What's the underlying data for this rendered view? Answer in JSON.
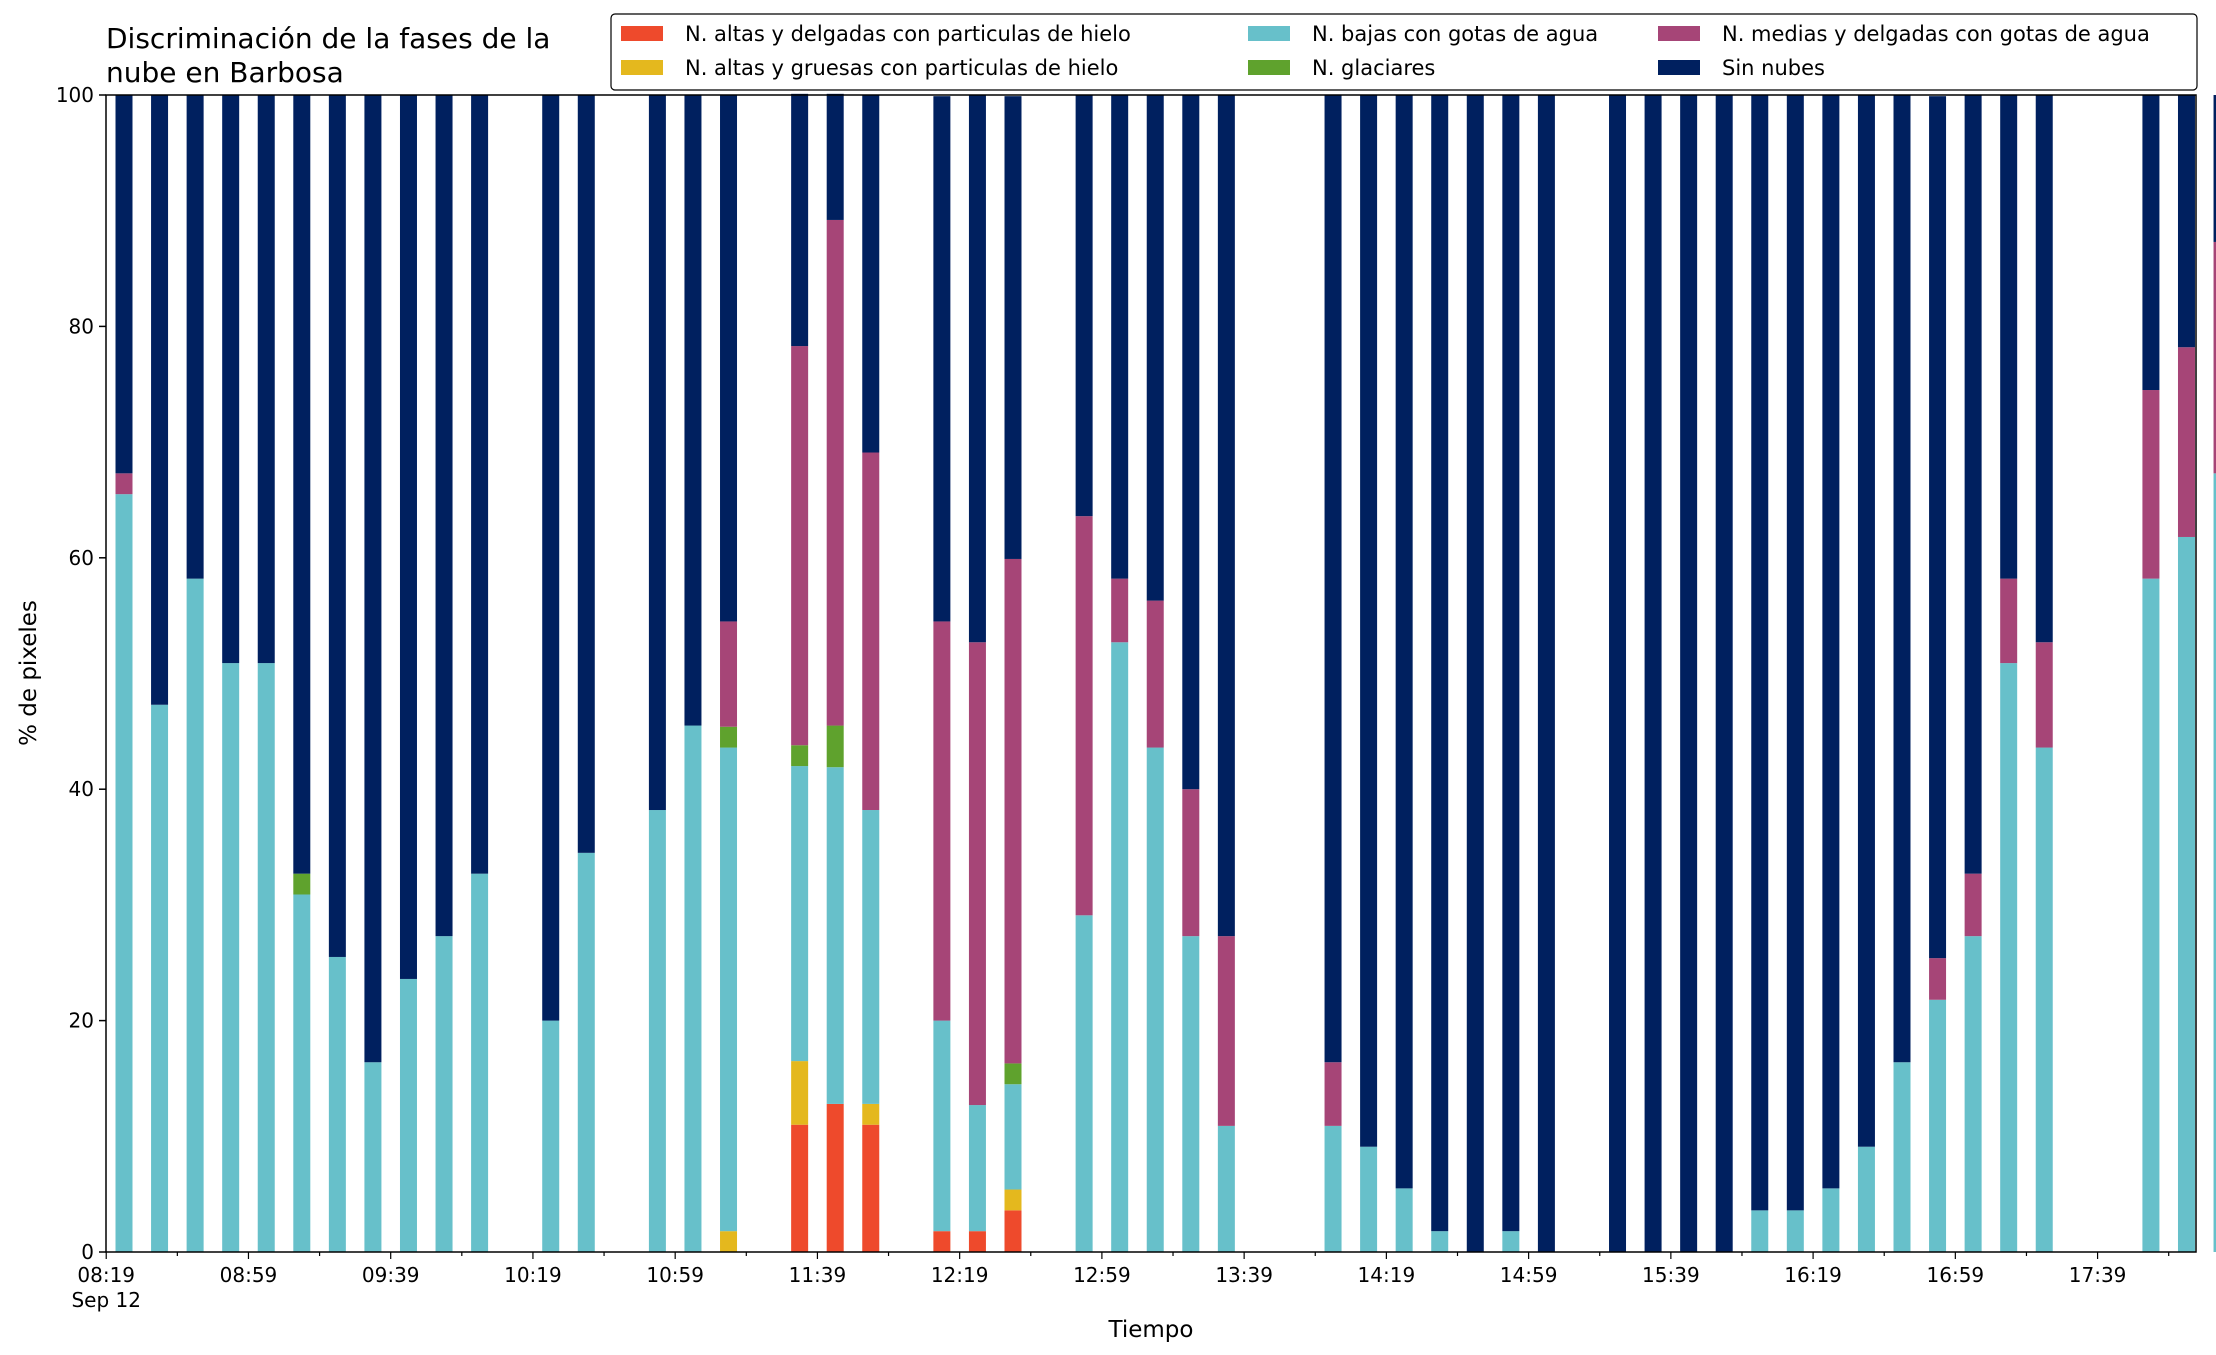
{
  "chart_data": {
    "type": "bar",
    "stacked": true,
    "title": "Discriminación de la fases de la\nnube en Barbosa",
    "xlabel": "Tiempo",
    "ylabel": "% de pixeles",
    "ylim": [
      0,
      100
    ],
    "yticks": [
      "0",
      "20",
      "40",
      "60",
      "80",
      "100"
    ],
    "xtick_labels": [
      "08:19",
      "08:59",
      "09:39",
      "10:19",
      "10:59",
      "11:39",
      "12:19",
      "12:59",
      "13:39",
      "14:19",
      "14:59",
      "15:39",
      "16:19",
      "16:59",
      "17:39"
    ],
    "xtick_sublabel": "Sep 12",
    "legend_position": "top-right",
    "colors": {
      "altas_delgadas": "#ee4a2c",
      "altas_gruesas": "#e4b81e",
      "bajas": "#67c0ca",
      "glaciares": "#5fa22d",
      "medias": "#a64577",
      "sin_nubes": "#00205f"
    },
    "series": [
      {
        "key": "altas_delgadas",
        "name": "N. altas y delgadas con particulas de hielo",
        "values": [
          0,
          0,
          0,
          0,
          0,
          0,
          0,
          0,
          0,
          0,
          0,
          null,
          0,
          0,
          null,
          0,
          0,
          0,
          0,
          11,
          12.8,
          11,
          null,
          1.8,
          1.8,
          3.6,
          null,
          0,
          0,
          0,
          0,
          0,
          null,
          null,
          0,
          0,
          0,
          0,
          0,
          0,
          0,
          null,
          0,
          0,
          0,
          0,
          0,
          0,
          0,
          0,
          0,
          0,
          0,
          0,
          0,
          0,
          null,
          0,
          0,
          0
        ]
      },
      {
        "key": "altas_gruesas",
        "name": "N. altas y gruesas con particulas de hielo",
        "values": [
          0,
          0,
          0,
          0,
          0,
          0,
          0,
          0,
          0,
          0,
          0,
          null,
          0,
          0,
          null,
          0,
          0,
          1.8,
          0,
          5.5,
          0,
          1.8,
          null,
          0,
          0,
          1.8,
          null,
          0,
          0,
          0,
          0,
          0,
          null,
          null,
          0,
          0,
          0,
          0,
          0,
          0,
          0,
          null,
          0,
          0,
          0,
          0,
          0,
          0,
          0,
          0,
          0,
          0,
          0,
          0,
          0,
          0,
          null,
          0,
          0,
          0
        ]
      },
      {
        "key": "bajas",
        "name": "N. bajas con gotas de agua",
        "values": [
          65.5,
          47.3,
          58.2,
          50.9,
          50.9,
          30.9,
          25.5,
          16.4,
          23.6,
          27.3,
          32.7,
          null,
          20,
          34.5,
          null,
          38.2,
          45.5,
          41.8,
          0,
          25.5,
          29.1,
          25.4,
          null,
          18.2,
          10.9,
          9.1,
          null,
          29.1,
          52.7,
          43.6,
          27.3,
          10.9,
          null,
          null,
          10.9,
          9.1,
          5.5,
          1.8,
          0,
          1.8,
          0,
          null,
          0,
          0,
          0,
          0,
          3.6,
          3.6,
          5.5,
          9.1,
          16.4,
          21.8,
          27.3,
          50.9,
          43.6,
          0,
          null,
          58.2,
          61.8,
          67.3
        ]
      },
      {
        "key": "glaciares",
        "name": "N. glaciares",
        "values": [
          0,
          0,
          0,
          0,
          0,
          1.8,
          0,
          0,
          0,
          0,
          0,
          null,
          0,
          0,
          null,
          0,
          0,
          1.8,
          0,
          1.8,
          3.6,
          0,
          null,
          0,
          0,
          1.8,
          null,
          0,
          0,
          0,
          0,
          0,
          null,
          null,
          0,
          0,
          0,
          0,
          0,
          0,
          0,
          null,
          0,
          0,
          0,
          0,
          0,
          0,
          0,
          0,
          0,
          0,
          0,
          0,
          0,
          0,
          null,
          0,
          0,
          0
        ]
      },
      {
        "key": "medias",
        "name": "N. medias y delgadas con gotas de agua",
        "values": [
          1.8,
          0,
          0,
          0,
          0,
          0,
          0,
          0,
          0,
          0,
          0,
          null,
          0,
          0,
          null,
          0,
          0,
          9.1,
          0,
          34.5,
          43.7,
          30.9,
          null,
          34.5,
          40,
          43.6,
          null,
          34.5,
          5.5,
          12.7,
          12.7,
          16.4,
          null,
          null,
          5.5,
          0,
          0,
          0,
          0,
          0,
          0,
          null,
          0,
          0,
          0,
          0,
          0,
          0,
          0,
          0,
          0,
          3.6,
          5.4,
          7.3,
          9.1,
          0,
          null,
          16.3,
          16.4,
          20
        ]
      },
      {
        "key": "sin_nubes",
        "name": "Sin nubes",
        "values": [
          32.7,
          52.7,
          41.8,
          49.1,
          49.1,
          67.3,
          74.5,
          83.6,
          76.4,
          72.7,
          67.3,
          null,
          80,
          65.5,
          null,
          61.8,
          54.5,
          45.5,
          0,
          21.8,
          10.9,
          30.9,
          null,
          45.4,
          47.3,
          40,
          null,
          36.4,
          41.8,
          43.7,
          60,
          72.7,
          null,
          null,
          83.6,
          90.9,
          94.5,
          98.2,
          100,
          98.2,
          100,
          null,
          100,
          100,
          100,
          100,
          96.4,
          96.4,
          94.5,
          90.9,
          83.6,
          74.5,
          67.3,
          41.8,
          47.3,
          0,
          null,
          25.5,
          21.8,
          12.7
        ]
      }
    ],
    "legend_order": [
      "altas_delgadas",
      "altas_gruesas",
      "bajas",
      "glaciares",
      "medias",
      "sin_nubes"
    ]
  }
}
